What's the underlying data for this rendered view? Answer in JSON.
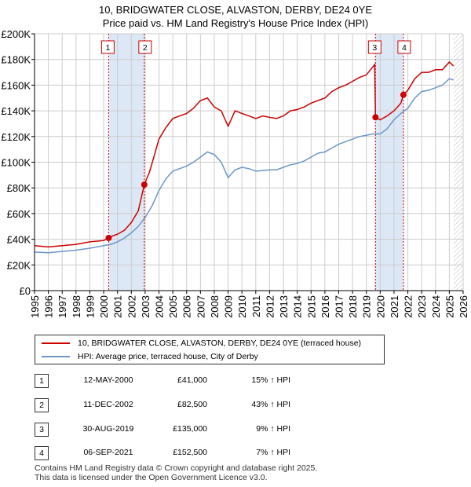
{
  "header": {
    "title_line1": "10, BRIDGWATER CLOSE, ALVASTON, DERBY, DE24 0YE",
    "title_line2": "Price paid vs. HM Land Registry's House Price Index (HPI)"
  },
  "legend": {
    "property_label": "10, BRIDGWATER CLOSE, ALVASTON, DERBY, DE24 0YE (terraced house)",
    "hpi_label": "HPI: Average price, terraced house, City of Derby"
  },
  "colors": {
    "property": "#cc0000",
    "hpi": "#6b97c8",
    "shade": "#dde8f6",
    "grid": "#cccccc"
  },
  "transactions": [
    {
      "num": "1",
      "date": "12-MAY-2000",
      "price": "£41,000",
      "hpi": "15% ↑ HPI"
    },
    {
      "num": "2",
      "date": "11-DEC-2002",
      "price": "£82,500",
      "hpi": "43% ↑ HPI"
    },
    {
      "num": "3",
      "date": "30-AUG-2019",
      "price": "£135,000",
      "hpi": "9% ↑ HPI"
    },
    {
      "num": "4",
      "date": "06-SEP-2021",
      "price": "£152,500",
      "hpi": "7% ↑ HPI"
    }
  ],
  "footer": {
    "line1": "Contains HM Land Registry data © Crown copyright and database right 2025.",
    "line2": "This data is licensed under the Open Government Licence v3.0."
  },
  "chart_data": {
    "type": "line",
    "title": "10, BRIDGWATER CLOSE, ALVASTON, DERBY, DE24 0YE",
    "subtitle": "Price paid vs. HM Land Registry's House Price Index (HPI)",
    "xlim": [
      1995,
      2026
    ],
    "ylim": [
      0,
      200000
    ],
    "x_ticks": [
      1995,
      1996,
      1997,
      1998,
      1999,
      2000,
      2001,
      2002,
      2003,
      2004,
      2005,
      2006,
      2007,
      2008,
      2009,
      2010,
      2011,
      2012,
      2013,
      2014,
      2015,
      2016,
      2017,
      2018,
      2019,
      2020,
      2021,
      2022,
      2023,
      2024,
      2025,
      2026
    ],
    "y_ticks": [
      0,
      20000,
      40000,
      60000,
      80000,
      100000,
      120000,
      140000,
      160000,
      180000,
      200000
    ],
    "y_tick_labels": [
      "£0",
      "£20K",
      "£40K",
      "£60K",
      "£80K",
      "£100K",
      "£120K",
      "£140K",
      "£160K",
      "£180K",
      "£200K"
    ],
    "grid": true,
    "shaded_ranges": [
      [
        2000.36,
        2002.94
      ],
      [
        2019.66,
        2021.68
      ]
    ],
    "series": [
      {
        "name": "10, BRIDGWATER CLOSE, ALVASTON, DERBY, DE24 0YE (terraced house)",
        "x": [
          1995,
          1996,
          1997,
          1998,
          1999,
          2000,
          2000.36,
          2000.5,
          2001,
          2001.5,
          2002,
          2002.5,
          2002.94,
          2003.3,
          2003.6,
          2004,
          2004.5,
          2005,
          2005.5,
          2006,
          2006.5,
          2007,
          2007.5,
          2008,
          2008.5,
          2009,
          2009.5,
          2010,
          2010.5,
          2011,
          2011.5,
          2012,
          2012.5,
          2013,
          2013.5,
          2014,
          2014.5,
          2015,
          2015.5,
          2016,
          2016.5,
          2017,
          2017.5,
          2018,
          2018.5,
          2019,
          2019.6,
          2019.66,
          2020,
          2020.5,
          2021,
          2021.5,
          2021.68,
          2022,
          2022.5,
          2023,
          2023.5,
          2024,
          2024.5,
          2025,
          2025.3
        ],
        "values": [
          35000,
          34000,
          35000,
          36000,
          38000,
          39000,
          41000,
          42000,
          44000,
          47000,
          53000,
          62000,
          82500,
          92000,
          103000,
          118000,
          127000,
          134000,
          136000,
          138000,
          142000,
          148000,
          150000,
          143000,
          140000,
          128000,
          140000,
          138000,
          136000,
          134000,
          136000,
          135000,
          134000,
          136000,
          140000,
          141000,
          143000,
          146000,
          148000,
          150000,
          155000,
          158000,
          160000,
          163000,
          166000,
          168000,
          176000,
          135000,
          133000,
          136000,
          140000,
          146000,
          152500,
          156000,
          165000,
          170000,
          170000,
          172000,
          172000,
          178000,
          175000
        ]
      },
      {
        "name": "HPI: Average price, terraced house, City of Derby",
        "x": [
          1995,
          1996,
          1997,
          1998,
          1999,
          2000,
          2000.5,
          2001,
          2001.5,
          2002,
          2002.5,
          2003,
          2003.5,
          2004,
          2004.5,
          2005,
          2005.5,
          2006,
          2006.5,
          2007,
          2007.5,
          2008,
          2008.5,
          2009,
          2009.5,
          2010,
          2010.5,
          2011,
          2011.5,
          2012,
          2012.5,
          2013,
          2013.5,
          2014,
          2014.5,
          2015,
          2015.5,
          2016,
          2016.5,
          2017,
          2017.5,
          2018,
          2018.5,
          2019,
          2019.5,
          2020,
          2020.5,
          2021,
          2021.5,
          2022,
          2022.5,
          2023,
          2023.5,
          2024,
          2024.5,
          2025,
          2025.3
        ],
        "values": [
          30000,
          29500,
          30500,
          31500,
          33000,
          35000,
          36000,
          38000,
          41000,
          45000,
          50000,
          57000,
          66000,
          78000,
          87000,
          93000,
          95000,
          97000,
          100000,
          104000,
          108000,
          106000,
          100000,
          88000,
          94000,
          96000,
          95000,
          93000,
          93500,
          94000,
          94000,
          96000,
          98000,
          99000,
          101000,
          104000,
          107000,
          108000,
          111000,
          114000,
          116000,
          118000,
          120000,
          121000,
          122000,
          122000,
          126000,
          133000,
          138000,
          142000,
          150000,
          155000,
          156000,
          158000,
          160000,
          165000,
          164000
        ]
      }
    ],
    "markers": [
      {
        "label": "1",
        "x": 2000.36,
        "y": 41000
      },
      {
        "label": "2",
        "x": 2002.94,
        "y": 82500
      },
      {
        "label": "3",
        "x": 2019.66,
        "y": 135000
      },
      {
        "label": "4",
        "x": 2021.68,
        "y": 152500
      }
    ]
  }
}
